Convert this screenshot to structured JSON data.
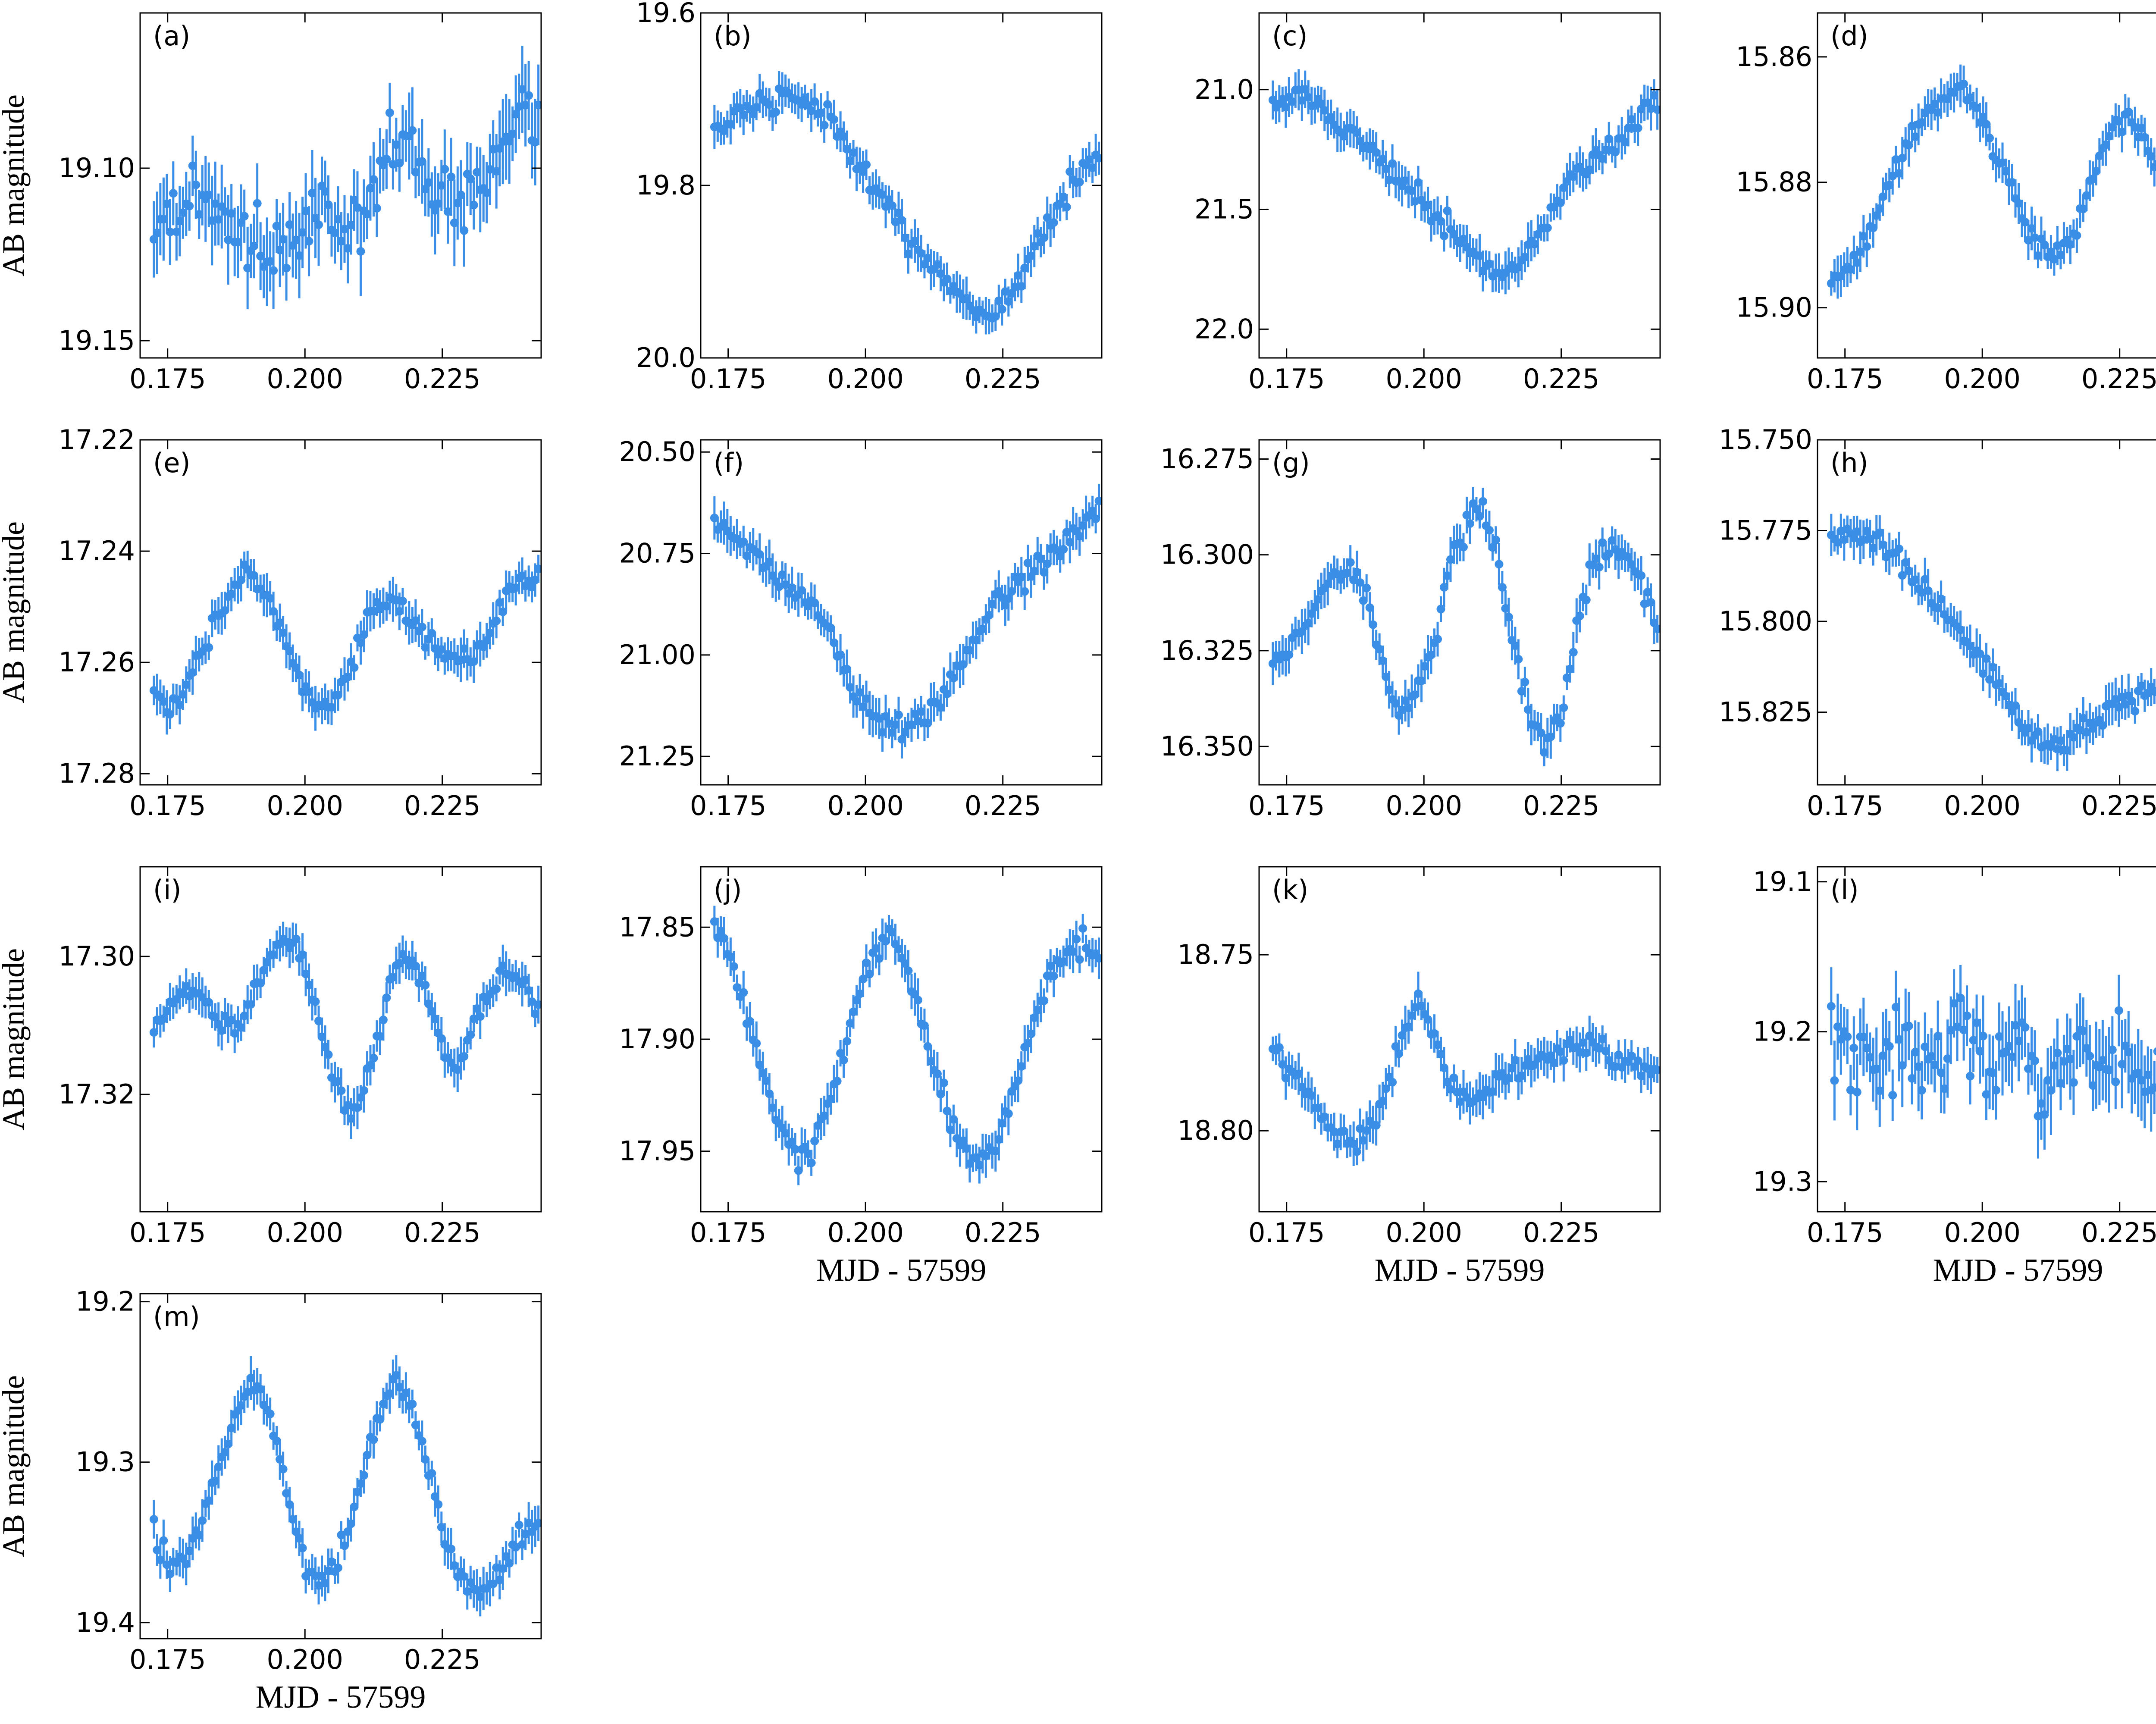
{
  "figure": {
    "color": "#3a8ee6",
    "ylabel": "AB magnitude",
    "xlabel": "MJD - 57599",
    "xticks": [
      0.175,
      0.2,
      0.225
    ],
    "xtick_labels": [
      "0.175",
      "0.200",
      "0.225"
    ]
  },
  "chart_data": [
    {
      "type": "scatter",
      "panel": "(a)",
      "xlim": [
        0.17,
        0.243
      ],
      "ylim": [
        19.155,
        19.055
      ],
      "yinvert": true,
      "yticks": [
        19.1,
        19.15
      ],
      "ytick_labels": [
        "19.10",
        "19.15"
      ],
      "series": [
        {
          "values": [
            19.115,
            19.113,
            19.11,
            19.106,
            19.112,
            19.116,
            19.123,
            19.127,
            19.123,
            19.117,
            19.112,
            19.113,
            19.116,
            19.111,
            19.102,
            19.095,
            19.095,
            19.102,
            19.108,
            19.111,
            19.109,
            19.101,
            19.091,
            19.083,
            19.084
          ]
        }
      ]
    },
    {
      "type": "scatter",
      "panel": "(b)",
      "xlim": [
        0.17,
        0.243
      ],
      "ylim": [
        20.0,
        19.6
      ],
      "yinvert": true,
      "yticks": [
        19.6,
        19.8,
        20.0
      ],
      "ytick_labels": [
        "19.6",
        "19.8",
        "20.0"
      ],
      "series": [
        {
          "values": [
            19.73,
            19.72,
            19.71,
            19.7,
            19.7,
            19.7,
            19.71,
            19.72,
            19.75,
            19.78,
            19.8,
            19.83,
            19.86,
            19.88,
            19.9,
            19.92,
            19.94,
            19.95,
            19.94,
            19.91,
            19.87,
            19.84,
            19.81,
            19.78,
            19.77
          ]
        }
      ]
    },
    {
      "type": "scatter",
      "panel": "(c)",
      "xlim": [
        0.17,
        0.243
      ],
      "ylim": [
        22.12,
        20.68
      ],
      "yinvert": true,
      "yticks": [
        21.0,
        21.5,
        22.0
      ],
      "ytick_labels": [
        "21.0",
        "21.5",
        "22.0"
      ],
      "series": [
        {
          "values": [
            21.05,
            21.04,
            21.05,
            21.09,
            21.14,
            21.19,
            21.24,
            21.31,
            21.37,
            21.44,
            21.51,
            21.58,
            21.66,
            21.73,
            21.79,
            21.76,
            21.65,
            21.55,
            21.44,
            21.35,
            21.28,
            21.24,
            21.19,
            21.12,
            21.03
          ]
        }
      ]
    },
    {
      "type": "scatter",
      "panel": "(d)",
      "xlim": [
        0.17,
        0.243
      ],
      "ylim": [
        15.908,
        15.853
      ],
      "yinvert": true,
      "yticks": [
        15.86,
        15.88,
        15.9
      ],
      "ytick_labels": [
        "15.86",
        "15.88",
        "15.90"
      ],
      "series": [
        {
          "values": [
            15.895,
            15.894,
            15.89,
            15.884,
            15.878,
            15.873,
            15.869,
            15.866,
            15.866,
            15.868,
            15.873,
            15.88,
            15.886,
            15.89,
            15.892,
            15.889,
            15.881,
            15.874,
            15.87,
            15.871,
            15.875,
            15.88,
            15.884,
            15.886,
            15.889
          ]
        }
      ]
    },
    {
      "type": "scatter",
      "panel": "(e)",
      "xlim": [
        0.17,
        0.243
      ],
      "ylim": [
        17.282,
        17.22
      ],
      "yinvert": true,
      "yticks": [
        17.22,
        17.24,
        17.26,
        17.28
      ],
      "ytick_labels": [
        "17.22",
        "17.24",
        "17.26",
        "17.28"
      ],
      "series": [
        {
          "values": [
            17.265,
            17.268,
            17.263,
            17.258,
            17.252,
            17.246,
            17.243,
            17.247,
            17.255,
            17.262,
            17.267,
            17.269,
            17.262,
            17.254,
            17.249,
            17.248,
            17.252,
            17.256,
            17.259,
            17.26,
            17.258,
            17.255,
            17.248,
            17.244,
            17.245
          ]
        }
      ]
    },
    {
      "type": "scatter",
      "panel": "(f)",
      "xlim": [
        0.17,
        0.243
      ],
      "ylim": [
        21.32,
        20.47
      ],
      "yinvert": true,
      "yticks": [
        20.5,
        20.75,
        21.0,
        21.25
      ],
      "ytick_labels": [
        "20.50",
        "20.75",
        "21.00",
        "21.25"
      ],
      "series": [
        {
          "values": [
            20.67,
            20.7,
            20.74,
            20.78,
            20.82,
            20.84,
            20.87,
            20.93,
            21.03,
            21.11,
            21.16,
            21.18,
            21.17,
            21.15,
            21.12,
            21.05,
            20.97,
            20.9,
            20.85,
            20.82,
            20.79,
            20.75,
            20.72,
            20.68,
            20.63
          ]
        }
      ]
    },
    {
      "type": "scatter",
      "panel": "(g)",
      "xlim": [
        0.17,
        0.243
      ],
      "ylim": [
        16.36,
        16.27
      ],
      "yinvert": true,
      "yticks": [
        16.275,
        16.3,
        16.325,
        16.35
      ],
      "ytick_labels": [
        "16.275",
        "16.300",
        "16.325",
        "16.350"
      ],
      "series": [
        {
          "values": [
            16.328,
            16.324,
            16.318,
            16.31,
            16.306,
            16.303,
            16.313,
            16.332,
            16.342,
            16.337,
            16.325,
            16.305,
            16.292,
            16.286,
            16.3,
            16.323,
            16.34,
            16.352,
            16.34,
            16.318,
            16.303,
            16.299,
            16.3,
            16.306,
            16.318
          ]
        }
      ]
    },
    {
      "type": "scatter",
      "panel": "(h)",
      "xlim": [
        0.17,
        0.243
      ],
      "ylim": [
        15.845,
        15.75
      ],
      "yinvert": true,
      "yticks": [
        15.75,
        15.775,
        15.8,
        15.825
      ],
      "ytick_labels": [
        "15.750",
        "15.775",
        "15.800",
        "15.825"
      ],
      "series": [
        {
          "values": [
            15.777,
            15.776,
            15.777,
            15.779,
            15.783,
            15.787,
            15.792,
            15.798,
            15.803,
            15.809,
            15.815,
            15.822,
            15.828,
            15.833,
            15.834,
            15.832,
            15.829,
            15.826,
            15.823,
            15.821,
            15.818,
            15.815,
            15.812,
            15.809,
            15.806
          ]
        }
      ]
    },
    {
      "type": "scatter",
      "panel": "(i)",
      "xlim": [
        0.17,
        0.243
      ],
      "ylim": [
        17.337,
        17.287
      ],
      "yinvert": true,
      "yticks": [
        17.3,
        17.32
      ],
      "ytick_labels": [
        "17.30",
        "17.32"
      ],
      "series": [
        {
          "values": [
            17.311,
            17.307,
            17.304,
            17.305,
            17.309,
            17.311,
            17.307,
            17.301,
            17.297,
            17.299,
            17.307,
            17.316,
            17.323,
            17.321,
            17.311,
            17.302,
            17.3,
            17.305,
            17.313,
            17.316,
            17.31,
            17.305,
            17.302,
            17.303,
            17.308
          ]
        }
      ]
    },
    {
      "type": "scatter",
      "panel": "(j)",
      "xlim": [
        0.17,
        0.243
      ],
      "ylim": [
        17.977,
        17.823
      ],
      "yinvert": true,
      "yticks": [
        17.85,
        17.9,
        17.95
      ],
      "ytick_labels": [
        "17.85",
        "17.90",
        "17.95"
      ],
      "series": [
        {
          "values": [
            17.848,
            17.863,
            17.888,
            17.917,
            17.938,
            17.953,
            17.952,
            17.933,
            17.906,
            17.877,
            17.862,
            17.855,
            17.868,
            17.892,
            17.919,
            17.941,
            17.953,
            17.951,
            17.939,
            17.916,
            17.89,
            17.872,
            17.86,
            17.858,
            17.866
          ]
        }
      ]
    },
    {
      "type": "scatter",
      "panel": "(k)",
      "xlim": [
        0.17,
        0.243
      ],
      "ylim": [
        18.823,
        18.725
      ],
      "yinvert": true,
      "yticks": [
        18.75,
        18.8
      ],
      "ytick_labels": [
        "18.75",
        "18.80"
      ],
      "series": [
        {
          "values": [
            18.776,
            18.782,
            18.789,
            18.796,
            18.802,
            18.803,
            18.799,
            18.79,
            18.774,
            18.762,
            18.772,
            18.787,
            18.793,
            18.79,
            18.786,
            18.783,
            18.781,
            18.779,
            18.777,
            18.776,
            18.776,
            18.779,
            18.782,
            18.784,
            18.784
          ]
        }
      ]
    },
    {
      "type": "scatter",
      "panel": "(l)",
      "xlim": [
        0.17,
        0.243
      ],
      "ylim": [
        19.32,
        19.09
      ],
      "yinvert": true,
      "yticks": [
        19.1,
        19.2,
        19.3
      ],
      "ytick_labels": [
        "19.1",
        "19.2",
        "19.3"
      ],
      "series": [
        {
          "values": [
            19.2,
            19.22,
            19.21,
            19.23,
            19.2,
            19.21,
            19.23,
            19.22,
            19.2,
            19.21,
            19.23,
            19.22,
            19.21,
            19.24,
            19.22,
            19.21,
            19.22,
            19.23,
            19.21,
            19.22,
            19.24,
            19.22,
            19.21,
            19.23,
            19.24
          ]
        }
      ]
    },
    {
      "type": "scatter",
      "panel": "(m)",
      "xlim": [
        0.17,
        0.243
      ],
      "ylim": [
        19.41,
        19.195
      ],
      "yinvert": true,
      "yticks": [
        19.2,
        19.3,
        19.4
      ],
      "ytick_labels": [
        "19.2",
        "19.3",
        "19.4"
      ],
      "series": [
        {
          "values": [
            19.345,
            19.365,
            19.36,
            19.335,
            19.305,
            19.275,
            19.25,
            19.262,
            19.303,
            19.348,
            19.372,
            19.368,
            19.345,
            19.31,
            19.27,
            19.248,
            19.26,
            19.298,
            19.34,
            19.37,
            19.38,
            19.375,
            19.36,
            19.345,
            19.338
          ]
        }
      ]
    }
  ]
}
